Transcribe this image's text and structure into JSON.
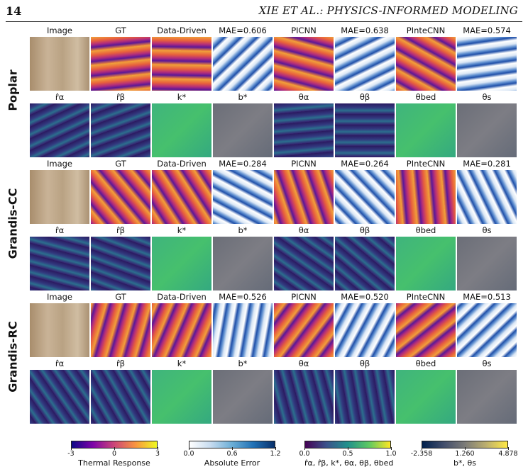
{
  "header": {
    "page_number": "14",
    "running_title": "XIE ET AL.: PHYSICS-INFORMED MODELING"
  },
  "rows": [
    {
      "label": "Poplar",
      "top_titles": [
        "Image",
        "GT",
        "Data-Driven",
        "MAE=0.606",
        "PICNN",
        "MAE=0.638",
        "PInteCNN",
        "MAE=0.574"
      ],
      "bottom_titles": [
        "r̂α",
        "r̂β",
        "k*",
        "b*",
        "θα",
        "θβ",
        "θbed",
        "θs"
      ]
    },
    {
      "label": "Grandis-CC",
      "top_titles": [
        "Image",
        "GT",
        "Data-Driven",
        "MAE=0.284",
        "PICNN",
        "MAE=0.264",
        "PInteCNN",
        "MAE=0.281"
      ],
      "bottom_titles": [
        "r̂α",
        "r̂β",
        "k*",
        "b*",
        "θα",
        "θβ",
        "θbed",
        "θs"
      ]
    },
    {
      "label": "Grandis-RC",
      "top_titles": [
        "Image",
        "GT",
        "Data-Driven",
        "MAE=0.526",
        "PICNN",
        "MAE=0.520",
        "PInteCNN",
        "MAE=0.513"
      ],
      "bottom_titles": [
        "r̂α",
        "r̂β",
        "k*",
        "b*",
        "θα",
        "θβ",
        "θbed",
        "θs"
      ]
    }
  ],
  "colorbars": [
    {
      "label": "Thermal Response",
      "ticks": [
        "-3",
        "0",
        "3"
      ],
      "gradient": [
        "#0d0887",
        "#7e03a8",
        "#cc4778",
        "#f89540",
        "#f0f921"
      ]
    },
    {
      "label": "Absolute Error",
      "ticks": [
        "0.0",
        "0.6",
        "1.2"
      ],
      "gradient": [
        "#ffffff",
        "#c6dbef",
        "#6baed6",
        "#2171b5",
        "#08306b"
      ]
    },
    {
      "label": "r̂α, r̂β, k*, θα, θβ, θbed",
      "ticks": [
        "0.0",
        "0.5",
        "1.0"
      ],
      "gradient": [
        "#440154",
        "#3b528b",
        "#21918c",
        "#5ec962",
        "#fde725"
      ]
    },
    {
      "label": "b*, θs",
      "ticks": [
        "-2.358",
        "1.260",
        "4.878"
      ],
      "gradient": [
        "#00204c",
        "#414d6b",
        "#7c7b78",
        "#bcaf6f",
        "#ffe945"
      ]
    }
  ]
}
